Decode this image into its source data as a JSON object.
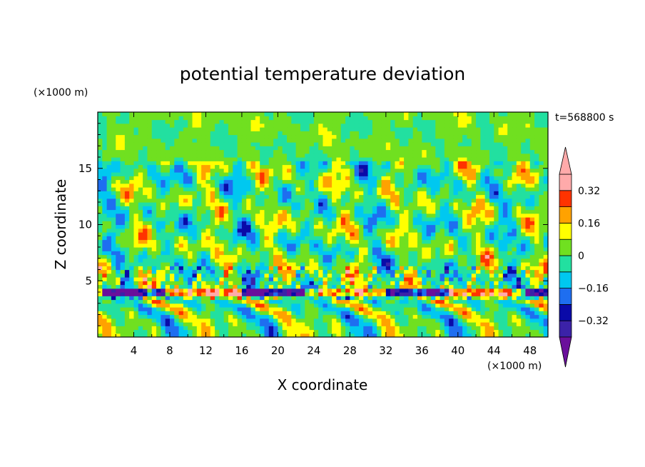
{
  "chart_data": {
    "type": "heatmap",
    "title": "potential temperature deviation",
    "xlabel": "X coordinate",
    "ylabel": "Z coordinate",
    "x_unit": "(×1000 m)",
    "y_unit": "(×1000 m)",
    "time_label": "t=568800 s",
    "xlim": [
      0,
      50
    ],
    "ylim": [
      0,
      20
    ],
    "x_ticks": [
      4,
      8,
      12,
      16,
      20,
      24,
      28,
      32,
      36,
      40,
      44,
      48
    ],
    "y_ticks": [
      5,
      10,
      15
    ],
    "colorbar": {
      "levels": [
        -0.4,
        -0.32,
        -0.24,
        -0.16,
        -0.08,
        0,
        0.08,
        0.16,
        0.24,
        0.32,
        0.4
      ],
      "tick_labels": [
        "0.32",
        "0.16",
        "0",
        "−0.16",
        "−0.32"
      ],
      "tick_values": [
        0.32,
        0.16,
        0,
        -0.16,
        -0.32
      ],
      "colors": [
        "#6a0f9b",
        "#3b22a8",
        "#0a0aa8",
        "#1e6ef0",
        "#00c8f0",
        "#22e0a0",
        "#70e020",
        "#ffff00",
        "#ffa200",
        "#ff3300",
        "#ffaaaa"
      ],
      "extend": "both"
    }
  }
}
